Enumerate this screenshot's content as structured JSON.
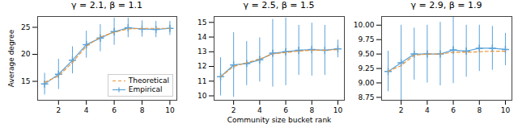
{
  "chart_data": [
    {
      "type": "line",
      "title": "γ = 2.1, β = 1.1",
      "ylabel": "Average degree",
      "x": [
        1,
        2,
        3,
        4,
        5,
        6,
        7,
        8,
        9,
        10
      ],
      "series": [
        {
          "name": "Theoretical",
          "color": "#e8943a",
          "line_style": "dashed",
          "values": [
            14.8,
            16.0,
            18.5,
            21.5,
            23.2,
            24.1,
            24.7,
            24.8,
            24.8,
            24.8
          ]
        },
        {
          "name": "Empirical",
          "color": "#5ba3d9",
          "line_style": "solid",
          "marker": "plus",
          "values": [
            14.5,
            16.3,
            18.9,
            21.8,
            23.0,
            24.2,
            24.9,
            24.7,
            24.6,
            24.8
          ],
          "errors": [
            2.0,
            2.8,
            2.5,
            2.5,
            2.5,
            2.5,
            1.8,
            1.5,
            1.5,
            1.3
          ]
        }
      ],
      "xlim": [
        0.5,
        10.5
      ],
      "xticks": [
        2,
        4,
        6,
        8,
        10
      ],
      "ylim": [
        11.5,
        27
      ],
      "yticks": [
        15,
        20,
        25
      ],
      "grid": false,
      "legend": "lower right"
    },
    {
      "type": "line",
      "title": "γ = 2.5, β = 1.5",
      "xlabel": "Community size bucket rank",
      "x": [
        1,
        2,
        3,
        4,
        5,
        6,
        7,
        8,
        9,
        10
      ],
      "series": [
        {
          "name": "Theoretical",
          "color": "#e8943a",
          "line_style": "dashed",
          "values": [
            11.3,
            12.0,
            12.25,
            12.5,
            12.85,
            12.95,
            13.05,
            13.1,
            13.1,
            13.15
          ]
        },
        {
          "name": "Empirical",
          "color": "#5ba3d9",
          "line_style": "solid",
          "marker": "plus",
          "values": [
            11.3,
            12.1,
            12.2,
            12.45,
            12.9,
            13.0,
            13.1,
            13.15,
            13.1,
            13.2
          ],
          "errors": [
            1.3,
            2.2,
            1.5,
            1.5,
            2.3,
            2.3,
            1.7,
            1.8,
            1.7,
            0.6
          ]
        }
      ],
      "xlim": [
        0.5,
        10.5
      ],
      "xticks": [
        2,
        4,
        6,
        8,
        10
      ],
      "ylim": [
        9.7,
        15.4
      ],
      "yticks": [
        10,
        11,
        12,
        13,
        14,
        15
      ],
      "grid": false
    },
    {
      "type": "line",
      "title": "γ = 2.9, β = 1.9",
      "x": [
        1,
        2,
        3,
        4,
        5,
        6,
        7,
        8,
        9,
        10
      ],
      "series": [
        {
          "name": "Theoretical",
          "color": "#e8943a",
          "line_style": "dashed",
          "values": [
            9.2,
            9.3,
            9.48,
            9.5,
            9.5,
            9.53,
            9.53,
            9.54,
            9.55,
            9.55
          ]
        },
        {
          "name": "Empirical",
          "color": "#5ba3d9",
          "line_style": "solid",
          "marker": "plus",
          "values": [
            9.2,
            9.35,
            9.5,
            9.5,
            9.5,
            9.57,
            9.55,
            9.6,
            9.6,
            9.58
          ],
          "errors": [
            0.35,
            0.65,
            0.45,
            0.5,
            0.55,
            0.58,
            0.45,
            0.4,
            0.38,
            0.28
          ]
        }
      ],
      "xlim": [
        0.5,
        10.5
      ],
      "xticks": [
        2,
        4,
        6,
        8,
        10
      ],
      "ylim": [
        8.7,
        10.15
      ],
      "yticks": [
        8.75,
        {
          "value": 9,
          "label": "9.00"
        },
        9.25,
        {
          "value": 9.5,
          "label": "9.50"
        },
        9.75,
        {
          "value": 10,
          "label": "10.00"
        }
      ],
      "grid": false
    }
  ]
}
